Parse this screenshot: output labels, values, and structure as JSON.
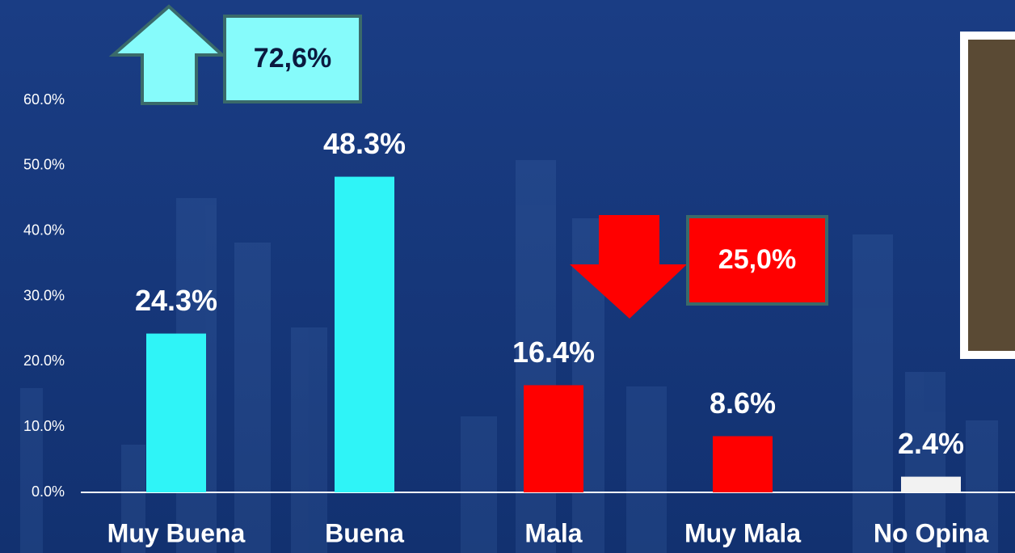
{
  "chart_data": {
    "type": "bar",
    "categories": [
      "Muy Buena",
      "Buena",
      "Mala",
      "Muy Mala",
      "No Opina"
    ],
    "values": [
      24.3,
      48.3,
      16.4,
      8.6,
      2.4
    ],
    "value_labels": [
      "24.3%",
      "48.3%",
      "16.4%",
      "8.6%",
      "2.4%"
    ],
    "colors": [
      "#2ff4f7",
      "#2ff4f7",
      "#ff0000",
      "#ff0000",
      "#f2f2f2"
    ],
    "ylim": [
      0,
      60
    ],
    "yticks": [
      {
        "value": 0,
        "label": "0.0%"
      },
      {
        "value": 10,
        "label": "10.0%"
      },
      {
        "value": 20,
        "label": "20.0%"
      },
      {
        "value": 30,
        "label": "30.0%"
      },
      {
        "value": 40,
        "label": "40.0%"
      },
      {
        "value": 50,
        "label": "50.0%"
      },
      {
        "value": 60,
        "label": "60.0%"
      }
    ],
    "annotations": [
      "72,6%",
      "25,0%"
    ]
  }
}
